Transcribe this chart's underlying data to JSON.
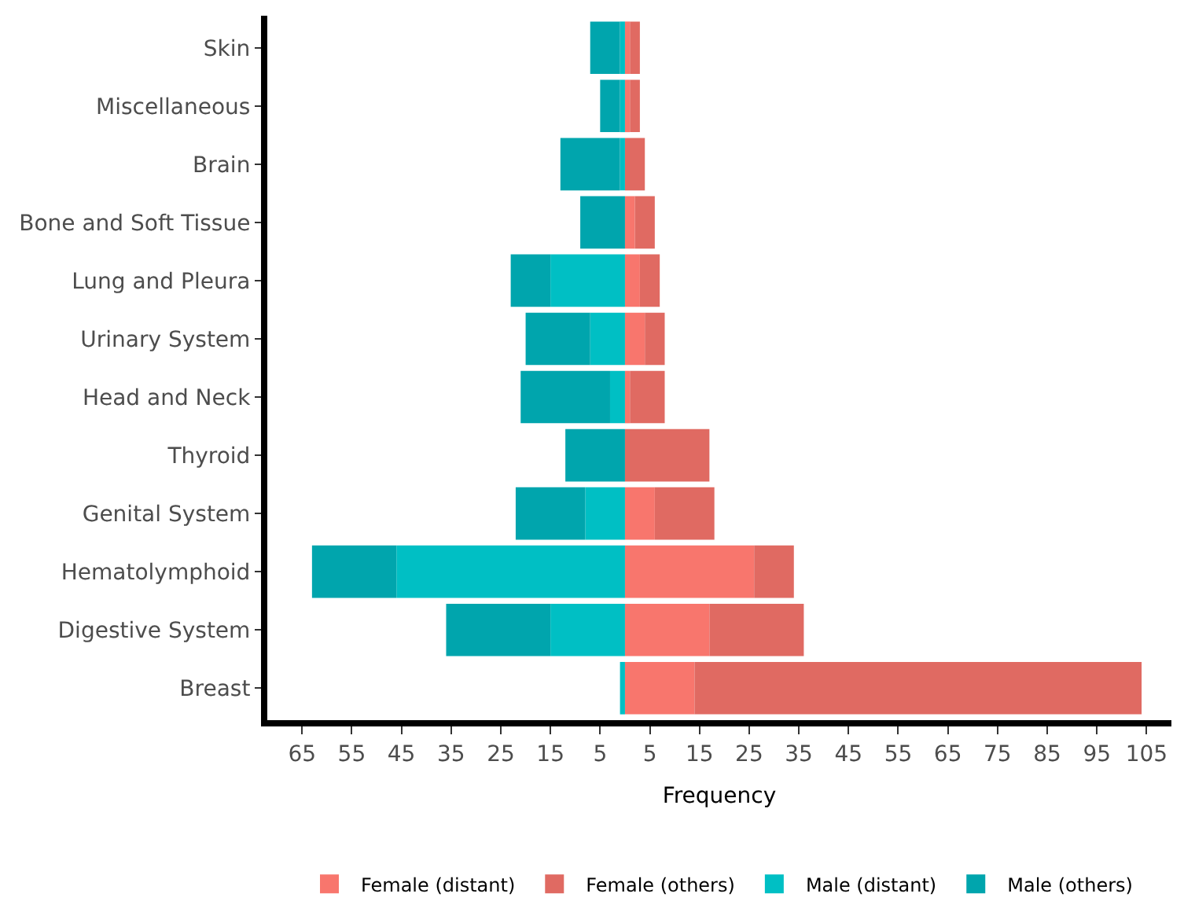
{
  "chart_data": {
    "type": "bar",
    "orientation": "horizontal",
    "stacked": true,
    "xlabel": "Frequency",
    "categories": [
      "Skin",
      "Miscellaneous",
      "Brain",
      "Bone and Soft Tissue",
      "Lung and Pleura",
      "Urinary System",
      "Head and Neck",
      "Thyroid",
      "Genital System",
      "Hematolymphoid",
      "Digestive System",
      "Breast"
    ],
    "series": [
      {
        "name": "Female (distant)",
        "color": "#f8766d",
        "values": [
          1,
          1,
          null,
          2,
          3,
          4,
          1,
          null,
          6,
          26,
          17,
          14
        ]
      },
      {
        "name": "Female (others)",
        "color": "#e06a62",
        "values": [
          2,
          2,
          4,
          4,
          4,
          4,
          7,
          17,
          12,
          8,
          19,
          90
        ]
      },
      {
        "name": "Male (distant)",
        "color": "#00bfc4",
        "values": [
          -1,
          -1,
          -1,
          null,
          -15,
          -7,
          -3,
          null,
          -8,
          -46,
          -15,
          -1
        ]
      },
      {
        "name": "Male (others)",
        "color": "#00a5ad",
        "values": [
          -6,
          -4,
          -12,
          -9,
          -8,
          -13,
          -18,
          -12,
          -14,
          -17,
          -21,
          null
        ]
      }
    ],
    "xlim": [
      -72,
      110
    ],
    "xticks": [
      {
        "value": -65,
        "label": "65"
      },
      {
        "value": -55,
        "label": "55"
      },
      {
        "value": -45,
        "label": "45"
      },
      {
        "value": -35,
        "label": "35"
      },
      {
        "value": -25,
        "label": "25"
      },
      {
        "value": -15,
        "label": "15"
      },
      {
        "value": -5,
        "label": "5"
      },
      5,
      15,
      25,
      35,
      45,
      55,
      65,
      75,
      85,
      95,
      105
    ],
    "legend": "bottom"
  }
}
